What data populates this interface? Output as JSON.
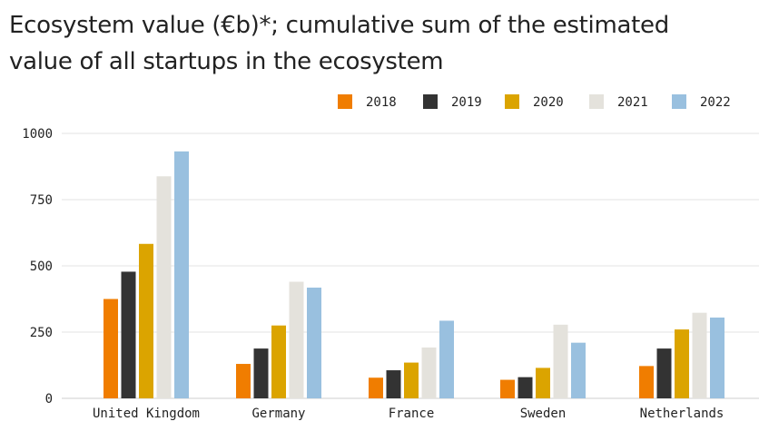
{
  "title": "Ecosystem value (€b)*; cumulative sum of the estimated value of all startups in the ecosystem",
  "chart_data": {
    "type": "bar",
    "title": "Ecosystem value (€b)*; cumulative sum of the estimated value of all startups in the ecosystem",
    "categories": [
      "United Kingdom",
      "Germany",
      "France",
      "Sweden",
      "Netherlands"
    ],
    "series": [
      {
        "name": "2018",
        "color": "#f07d00",
        "values": [
          375,
          130,
          78,
          70,
          122
        ]
      },
      {
        "name": "2019",
        "color": "#333333",
        "values": [
          478,
          188,
          106,
          80,
          188
        ]
      },
      {
        "name": "2020",
        "color": "#dba400",
        "values": [
          583,
          275,
          135,
          115,
          260
        ]
      },
      {
        "name": "2021",
        "color": "#e4e2dc",
        "values": [
          838,
          440,
          192,
          278,
          323
        ]
      },
      {
        "name": "2022",
        "color": "#99c0df",
        "values": [
          932,
          418,
          293,
          210,
          305
        ]
      }
    ],
    "ylim": [
      0,
      1000
    ],
    "yticks": [
      0,
      250,
      500,
      750,
      1000
    ],
    "grid": true,
    "legend_position": "top-right",
    "xlabel": "",
    "ylabel": ""
  }
}
